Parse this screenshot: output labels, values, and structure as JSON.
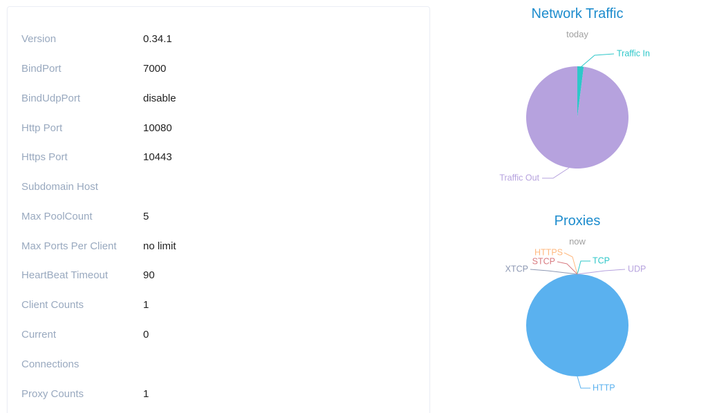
{
  "server_info": [
    {
      "label": "Version",
      "value": "0.34.1"
    },
    {
      "label": "BindPort",
      "value": "7000"
    },
    {
      "label": "BindUdpPort",
      "value": "disable"
    },
    {
      "label": "Http Port",
      "value": "10080"
    },
    {
      "label": "Https Port",
      "value": "10443"
    },
    {
      "label": "Subdomain Host",
      "value": ""
    },
    {
      "label": "Max PoolCount",
      "value": "5"
    },
    {
      "label": "Max Ports Per Client",
      "value": "no limit"
    },
    {
      "label": "HeartBeat Timeout",
      "value": "90"
    },
    {
      "label": "Client Counts",
      "value": "1"
    },
    {
      "label": "Current",
      "value": "0"
    },
    {
      "label": "Connections",
      "value": ""
    },
    {
      "label": "Proxy Counts",
      "value": "1"
    }
  ],
  "traffic_chart": {
    "title": "Network Traffic",
    "subtitle": "today"
  },
  "proxies_chart": {
    "title": "Proxies",
    "subtitle": "now"
  },
  "chart_data": [
    {
      "type": "pie",
      "title": "Network Traffic",
      "subtitle": "today",
      "slices": [
        {
          "name": "Traffic In",
          "value": 2,
          "color": "#2ec7c9"
        },
        {
          "name": "Traffic Out",
          "value": 98,
          "color": "#b6a2de"
        }
      ]
    },
    {
      "type": "pie",
      "title": "Proxies",
      "subtitle": "now",
      "slices": [
        {
          "name": "TCP",
          "value": 0,
          "color": "#2ec7c9"
        },
        {
          "name": "UDP",
          "value": 0,
          "color": "#b6a2de"
        },
        {
          "name": "HTTP",
          "value": 1,
          "color": "#5ab1ef"
        },
        {
          "name": "HTTPS",
          "value": 0,
          "color": "#ffb980"
        },
        {
          "name": "STCP",
          "value": 0,
          "color": "#d87a80"
        },
        {
          "name": "XTCP",
          "value": 0,
          "color": "#8d98b3"
        }
      ]
    }
  ]
}
